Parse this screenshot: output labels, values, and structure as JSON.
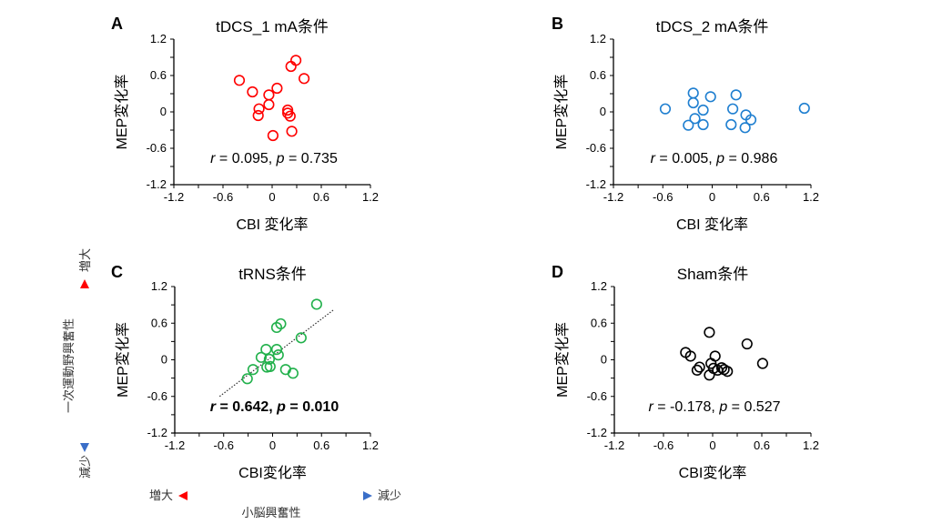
{
  "chart_data": [
    {
      "type": "scatter",
      "panel": "A",
      "title": "tDCS_1 mA条件",
      "xlabel": "CBI 変化率",
      "ylabel": "MEP変化率",
      "xlim": [
        -1.2,
        1.2
      ],
      "ylim": [
        -1.2,
        1.2
      ],
      "xticks": [
        "-1.2",
        "-0.6",
        "0",
        "0.6",
        "1.2"
      ],
      "yticks": [
        "1.2",
        "0.6",
        "0",
        "-0.6",
        "-1.2"
      ],
      "color": "#ff0000",
      "stat": {
        "r_label": "r",
        "r_value": "0.095",
        "p_label": "p",
        "p_value": "0.735",
        "bold": false
      },
      "trendline": null,
      "points": [
        {
          "x": -0.4,
          "y": 0.52
        },
        {
          "x": -0.24,
          "y": 0.33
        },
        {
          "x": -0.04,
          "y": 0.28
        },
        {
          "x": 0.06,
          "y": 0.39
        },
        {
          "x": -0.04,
          "y": 0.12
        },
        {
          "x": -0.16,
          "y": 0.05
        },
        {
          "x": -0.17,
          "y": -0.06
        },
        {
          "x": 0.29,
          "y": 0.85
        },
        {
          "x": 0.23,
          "y": 0.75
        },
        {
          "x": 0.39,
          "y": 0.55
        },
        {
          "x": 0.19,
          "y": 0.03
        },
        {
          "x": 0.19,
          "y": -0.02
        },
        {
          "x": 0.22,
          "y": -0.07
        },
        {
          "x": 0.24,
          "y": -0.32
        },
        {
          "x": 0.01,
          "y": -0.39
        }
      ]
    },
    {
      "type": "scatter",
      "panel": "B",
      "title": "tDCS_2 mA条件",
      "xlabel": "CBI 変化率",
      "ylabel": "MEP変化率",
      "xlim": [
        -1.2,
        1.2
      ],
      "ylim": [
        -1.2,
        1.2
      ],
      "xticks": [
        "-1.2",
        "-0.6",
        "0",
        "0.6",
        "1.2"
      ],
      "yticks": [
        "1.2",
        "0.6",
        "0",
        "-0.6",
        "-1.2"
      ],
      "color": "#1f7fd0",
      "stat": {
        "r_label": "r",
        "r_value": "0.005",
        "p_label": "p",
        "p_value": "0.986",
        "bold": false
      },
      "trendline": null,
      "points": [
        {
          "x": -0.57,
          "y": 0.05
        },
        {
          "x": -0.23,
          "y": 0.31
        },
        {
          "x": -0.23,
          "y": 0.15
        },
        {
          "x": -0.02,
          "y": 0.25
        },
        {
          "x": -0.11,
          "y": 0.03
        },
        {
          "x": -0.21,
          "y": -0.11
        },
        {
          "x": -0.29,
          "y": -0.22
        },
        {
          "x": -0.11,
          "y": -0.21
        },
        {
          "x": 0.29,
          "y": 0.28
        },
        {
          "x": 0.25,
          "y": 0.05
        },
        {
          "x": 0.23,
          "y": -0.21
        },
        {
          "x": 0.41,
          "y": -0.05
        },
        {
          "x": 0.47,
          "y": -0.13
        },
        {
          "x": 0.4,
          "y": -0.26
        },
        {
          "x": 1.12,
          "y": 0.06
        }
      ]
    },
    {
      "type": "scatter",
      "panel": "C",
      "title": "tRNS条件",
      "xlabel": "CBI変化率",
      "ylabel": "MEP変化率",
      "xlim": [
        -1.2,
        1.2
      ],
      "ylim": [
        -1.2,
        1.2
      ],
      "xticks": [
        "-1.2",
        "-0.6",
        "0",
        "0.6",
        "1.2"
      ],
      "yticks": [
        "1.2",
        "0.6",
        "0",
        "-0.6",
        "-1.2"
      ],
      "color": "#22b14c",
      "stat": {
        "r_label": "r",
        "r_value": "0.642",
        "p_label": "p",
        "p_value": "0.010",
        "bold": true
      },
      "trendline": {
        "x1": -0.65,
        "y1": -0.6,
        "x2": 0.75,
        "y2": 0.82,
        "style": "dotted"
      },
      "points": [
        {
          "x": 0.54,
          "y": 0.91
        },
        {
          "x": 0.1,
          "y": 0.59
        },
        {
          "x": 0.05,
          "y": 0.53
        },
        {
          "x": 0.35,
          "y": 0.36
        },
        {
          "x": -0.08,
          "y": 0.17
        },
        {
          "x": 0.05,
          "y": 0.17
        },
        {
          "x": -0.14,
          "y": 0.04
        },
        {
          "x": -0.04,
          "y": 0.01
        },
        {
          "x": 0.07,
          "y": 0.08
        },
        {
          "x": -0.07,
          "y": -0.12
        },
        {
          "x": -0.03,
          "y": -0.11
        },
        {
          "x": -0.24,
          "y": -0.16
        },
        {
          "x": 0.16,
          "y": -0.16
        },
        {
          "x": 0.25,
          "y": -0.22
        },
        {
          "x": -0.31,
          "y": -0.31
        }
      ]
    },
    {
      "type": "scatter",
      "panel": "D",
      "title": "Sham条件",
      "xlabel": "CBI変化率",
      "ylabel": "MEP変化率",
      "xlim": [
        -1.2,
        1.2
      ],
      "ylim": [
        -1.2,
        1.2
      ],
      "xticks": [
        "-1.2",
        "-0.6",
        "0",
        "0.6",
        "1.2"
      ],
      "yticks": [
        "1.2",
        "0.6",
        "0",
        "-0.6",
        "-1.2"
      ],
      "color": "#000000",
      "stat": {
        "r_label": "r",
        "r_value": "-0.178",
        "p_label": "p",
        "p_value": "0.527",
        "bold": false
      },
      "trendline": null,
      "points": [
        {
          "x": -0.04,
          "y": 0.45
        },
        {
          "x": 0.42,
          "y": 0.26
        },
        {
          "x": -0.33,
          "y": 0.12
        },
        {
          "x": -0.27,
          "y": 0.06
        },
        {
          "x": 0.03,
          "y": 0.06
        },
        {
          "x": -0.02,
          "y": -0.06
        },
        {
          "x": 0.61,
          "y": -0.06
        },
        {
          "x": -0.16,
          "y": -0.12
        },
        {
          "x": -0.19,
          "y": -0.17
        },
        {
          "x": 0.01,
          "y": -0.14
        },
        {
          "x": 0.06,
          "y": -0.17
        },
        {
          "x": 0.11,
          "y": -0.13
        },
        {
          "x": 0.14,
          "y": -0.16
        },
        {
          "x": 0.18,
          "y": -0.19
        },
        {
          "x": -0.04,
          "y": -0.25
        }
      ]
    }
  ],
  "legend": {
    "vertical": {
      "title": "一次運動野興奮性",
      "top_label": "増大",
      "bottom_label": "減少",
      "top_color": "#ff0000",
      "bottom_color": "#3a6ec8"
    },
    "horizontal": {
      "title": "小脳興奮性",
      "left_label": "増大",
      "right_label": "減少",
      "left_color": "#ff0000",
      "right_color": "#3a6ec8"
    }
  }
}
